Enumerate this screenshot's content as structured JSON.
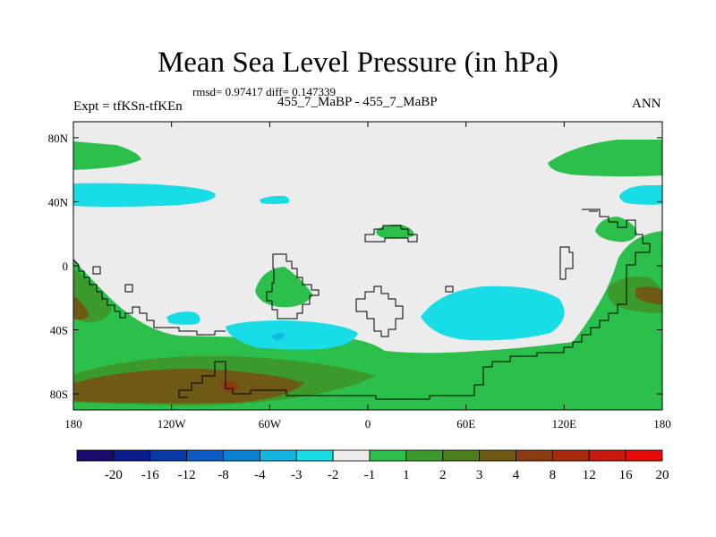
{
  "chart_data": {
    "type": "heatmap",
    "title": "Mean Sea Level Pressure (in hPa)",
    "stats": "rmsd= 0.97417 diff= 0.147339",
    "left_label": "Expt = tfKSn-tfKEn",
    "center_label": "455_7_MaBP - 455_7_MaBP",
    "right_label": "ANN",
    "x_ticks": [
      "180",
      "120W",
      "60W",
      "0",
      "60E",
      "120E",
      "180"
    ],
    "y_ticks": [
      "80N",
      "40N",
      "0",
      "40S",
      "80S"
    ],
    "xlim": [
      -180,
      180
    ],
    "ylim": [
      -90,
      90
    ],
    "colorbar": {
      "colors": [
        "#1a0a6e",
        "#0a1c8c",
        "#0a3aa8",
        "#0a5cc2",
        "#0a82d2",
        "#16b4e0",
        "#18dce6",
        "#ececec",
        "#2dbf4c",
        "#3c9a2c",
        "#4c7e1e",
        "#6e5a14",
        "#8a3c10",
        "#a82a0e",
        "#c81a0c",
        "#e60c0a"
      ],
      "labels": [
        "-20",
        "-16",
        "-12",
        "-8",
        "-4",
        "-3",
        "-2",
        "-1",
        "1",
        "2",
        "3",
        "4",
        "8",
        "12",
        "16",
        "20"
      ]
    }
  }
}
